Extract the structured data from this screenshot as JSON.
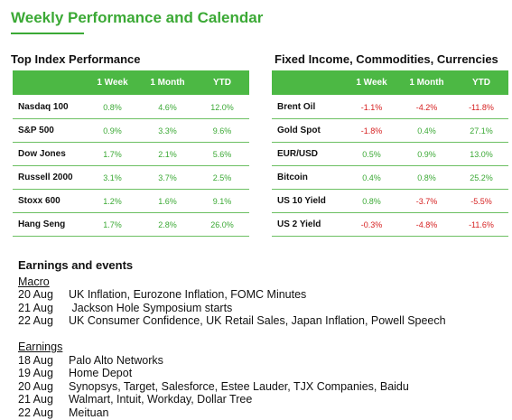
{
  "page": {
    "title": "Weekly Performance and Calendar"
  },
  "index_table": {
    "title": "Top Index Performance",
    "columns": [
      "1 Week",
      "1 Month",
      "YTD"
    ],
    "rows": [
      {
        "name": "Nasdaq 100",
        "week": "0.8%",
        "month": "4.6%",
        "ytd": "12.0%"
      },
      {
        "name": "S&P 500",
        "week": "0.9%",
        "month": "3.3%",
        "ytd": "9.6%"
      },
      {
        "name": "Dow Jones",
        "week": "1.7%",
        "month": "2.1%",
        "ytd": "5.6%"
      },
      {
        "name": "Russell 2000",
        "week": "3.1%",
        "month": "3.7%",
        "ytd": "2.5%"
      },
      {
        "name": "Stoxx 600",
        "week": "1.2%",
        "month": "1.6%",
        "ytd": "9.1%"
      },
      {
        "name": "Hang Seng",
        "week": "1.7%",
        "month": "2.8%",
        "ytd": "26.0%"
      }
    ]
  },
  "fi_table": {
    "title": "Fixed Income, Commodities, Currencies",
    "columns": [
      "1 Week",
      "1 Month",
      "YTD"
    ],
    "rows": [
      {
        "name": "Brent Oil",
        "week": "-1.1%",
        "month": "-4.2%",
        "ytd": "-11.8%"
      },
      {
        "name": "Gold Spot",
        "week": "-1.8%",
        "month": "0.4%",
        "ytd": "27.1%"
      },
      {
        "name": "EUR/USD",
        "week": "0.5%",
        "month": "0.9%",
        "ytd": "13.0%"
      },
      {
        "name": "Bitcoin",
        "week": "0.4%",
        "month": "0.8%",
        "ytd": "25.2%"
      },
      {
        "name": "US 10 Yield",
        "week": "0.8%",
        "month": "-3.7%",
        "ytd": "-5.5%"
      },
      {
        "name": "US 2 Yield",
        "week": "-0.3%",
        "month": "-4.8%",
        "ytd": "-11.6%"
      }
    ]
  },
  "events": {
    "heading": "Earnings and events",
    "macro_label": "Macro",
    "macro": [
      {
        "date": "20 Aug",
        "text": "UK Inflation, Eurozone Inflation, FOMC Minutes"
      },
      {
        "date": "21 Aug",
        "text": " Jackson Hole Symposium starts"
      },
      {
        "date": "22 Aug",
        "text": "UK Consumer Confidence, UK Retail Sales, Japan Inflation, Powell Speech"
      }
    ],
    "earnings_label": "Earnings",
    "earnings": [
      {
        "date": "18 Aug",
        "text": "Palo Alto Networks"
      },
      {
        "date": "19 Aug",
        "text": "Home Depot"
      },
      {
        "date": "20 Aug",
        "text": "Synopsys, Target, Salesforce, Estee Lauder, TJX Companies, Baidu"
      },
      {
        "date": "21 Aug",
        "text": "Walmart, Intuit, Workday, Dollar Tree"
      },
      {
        "date": "22 Aug",
        "text": "Meituan"
      }
    ]
  },
  "colors": {
    "accent": "#3ba935",
    "header_bg": "#4cb844",
    "positive": "#3ba935",
    "negative": "#d62020"
  }
}
